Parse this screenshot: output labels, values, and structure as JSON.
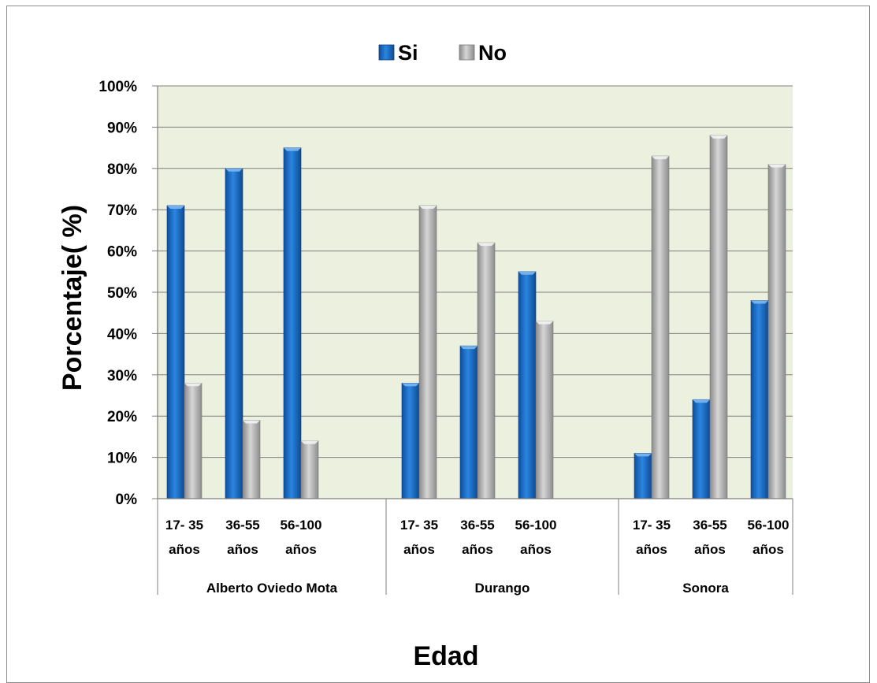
{
  "chart_data": {
    "type": "bar",
    "legend_position": "top-center",
    "ylabel": "Porcentaje( %)",
    "xlabel": "Edad",
    "ylim": [
      0,
      100
    ],
    "yticks": [
      "0%",
      "10%",
      "20%",
      "30%",
      "40%",
      "50%",
      "60%",
      "70%",
      "80%",
      "90%",
      "100%"
    ],
    "groups": [
      {
        "name": "Alberto Oviedo Mota",
        "categories": [
          [
            "17- 35",
            "años"
          ],
          [
            "36-55",
            "años"
          ],
          [
            "56-100",
            "años"
          ]
        ]
      },
      {
        "name": "Durango",
        "categories": [
          [
            "17- 35",
            "años"
          ],
          [
            "36-55",
            "años"
          ],
          [
            "56-100",
            "años"
          ]
        ]
      },
      {
        "name": "Sonora",
        "categories": [
          [
            "17- 35",
            "años"
          ],
          [
            "36-55",
            "años"
          ],
          [
            "56-100",
            "años"
          ]
        ]
      }
    ],
    "series": [
      {
        "name": "Si",
        "color": "#1f6fc9",
        "values": [
          71,
          80,
          85,
          28,
          37,
          55,
          11,
          24,
          48
        ]
      },
      {
        "name": "No",
        "color": "#a6a6a6",
        "values": [
          28,
          19,
          14,
          71,
          62,
          43,
          83,
          88,
          81
        ]
      }
    ],
    "plot_background": "#ecf0de",
    "grid": true
  }
}
